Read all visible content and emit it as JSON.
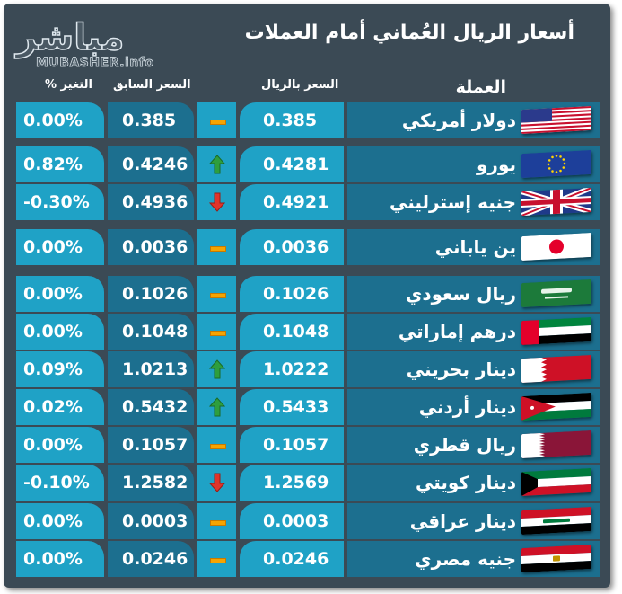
{
  "title": "أسعار الريال العُماني أمام العملات",
  "logo": {
    "arabic": "مباشر",
    "english": "MUBASHER.info"
  },
  "headers": {
    "currency": "العملة",
    "price": "السعر بالريال",
    "previous": "السعر السابق",
    "change": "التغير %"
  },
  "colors": {
    "background": "#3b4a55",
    "cell_light": "#1fa2c6",
    "cell_dark": "#1c6f8f",
    "up": "#2e9e3e",
    "down": "#e0342a",
    "neutral": "#f6a400"
  },
  "rows": [
    {
      "name": "دولار أمريكي",
      "flag": "us-flag",
      "price": "0.385",
      "previous": "0.385",
      "change": "0.00%",
      "trend": "neutral"
    },
    {
      "name": "يورو",
      "flag": "eu-flag",
      "price": "0.4281",
      "previous": "0.4246",
      "change": "0.82%",
      "trend": "up"
    },
    {
      "name": "جنيه إسترليني",
      "flag": "uk-flag",
      "price": "0.4921",
      "previous": "0.4936",
      "change": "-0.30%",
      "trend": "down"
    },
    {
      "name": "ين ياباني",
      "flag": "japan-flag",
      "price": "0.0036",
      "previous": "0.0036",
      "change": "0.00%",
      "trend": "neutral"
    },
    {
      "name": "ريال سعودي",
      "flag": "saudi-flag",
      "price": "0.1026",
      "previous": "0.1026",
      "change": "0.00%",
      "trend": "neutral"
    },
    {
      "name": "درهم إماراتي",
      "flag": "uae-flag",
      "price": "0.1048",
      "previous": "0.1048",
      "change": "0.00%",
      "trend": "neutral"
    },
    {
      "name": "دينار بحريني",
      "flag": "bahrain-flag",
      "price": "1.0222",
      "previous": "1.0213",
      "change": "0.09%",
      "trend": "up"
    },
    {
      "name": "دينار أردني",
      "flag": "jordan-flag",
      "price": "0.5433",
      "previous": "0.5432",
      "change": "0.02%",
      "trend": "up"
    },
    {
      "name": "ريال قطري",
      "flag": "qatar-flag",
      "price": "0.1057",
      "previous": "0.1057",
      "change": "0.00%",
      "trend": "neutral"
    },
    {
      "name": "دينار كويتي",
      "flag": "kuwait-flag",
      "price": "1.2569",
      "previous": "1.2582",
      "change": "-0.10%",
      "trend": "down"
    },
    {
      "name": "دينار عراقي",
      "flag": "iraq-flag",
      "price": "0.0003",
      "previous": "0.0003",
      "change": "0.00%",
      "trend": "neutral"
    },
    {
      "name": "جنيه مصري",
      "flag": "egypt-flag",
      "price": "0.0246",
      "previous": "0.0246",
      "change": "0.00%",
      "trend": "neutral"
    }
  ]
}
